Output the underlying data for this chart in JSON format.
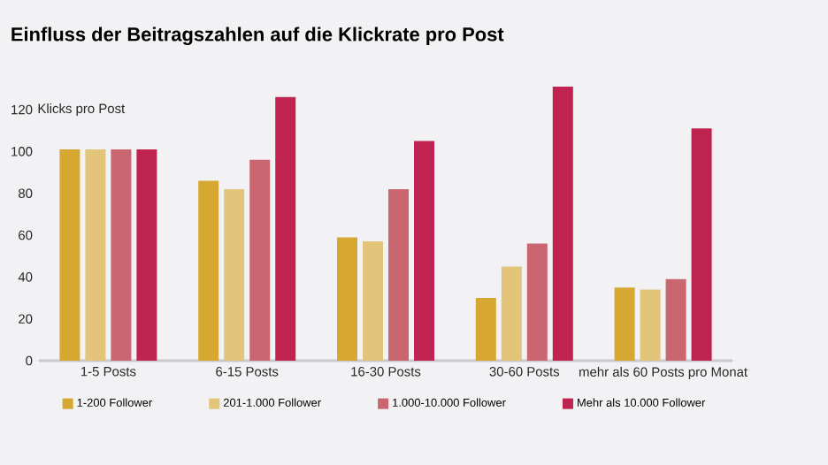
{
  "chart_data": {
    "type": "bar",
    "title": "Einfluss der Beitragszahlen auf die Klickrate pro Post",
    "ylabel": "Klicks pro Post",
    "categories": [
      "1-5 Posts",
      "6-15 Posts",
      "16-30 Posts",
      "30-60 Posts",
      "mehr als 60 Posts pro Monat"
    ],
    "series": [
      {
        "name": "1-200 Follower",
        "color": "#d6a832",
        "values": [
          101,
          86,
          59,
          30,
          35
        ]
      },
      {
        "name": "201-1.000 Follower",
        "color": "#e2c57a",
        "values": [
          101,
          82,
          57,
          45,
          34
        ]
      },
      {
        "name": "1.000-10.000 Follower",
        "color": "#c96670",
        "values": [
          101,
          96,
          82,
          56,
          39
        ]
      },
      {
        "name": "Mehr als 10.000 Follower",
        "color": "#bf2450",
        "values": [
          101,
          126,
          105,
          131,
          111
        ]
      }
    ],
    "ylim": [
      0,
      131
    ],
    "yticks": [
      0,
      20,
      40,
      60,
      80,
      100,
      120
    ],
    "legend": "bottom"
  }
}
